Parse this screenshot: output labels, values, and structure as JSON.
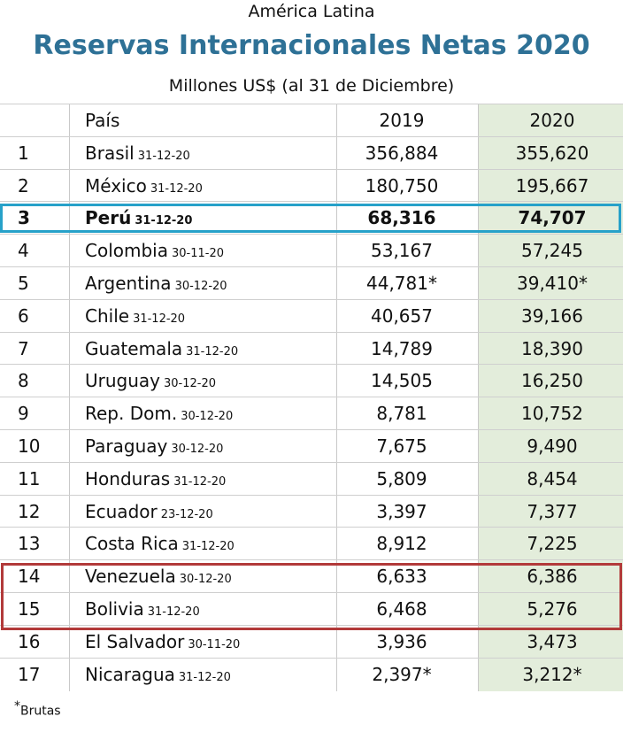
{
  "header": {
    "kicker": "América Latina",
    "title": "Reservas Internacionales Netas 2020",
    "subtitle": "Millones US$ (al 31 de Diciembre)"
  },
  "chart_data": {
    "type": "table",
    "title": "Reservas Internacionales Netas 2020",
    "subtitle": "Millones US$ (al 31 de Diciembre)",
    "columns": [
      "",
      "País",
      "2019",
      "2020"
    ],
    "rows": [
      {
        "rank": "1",
        "country": "Brasil",
        "date": "31-12-20",
        "v2019": "356,884",
        "v2020": "355,620"
      },
      {
        "rank": "2",
        "country": "México",
        "date": "31-12-20",
        "v2019": "180,750",
        "v2020": "195,667"
      },
      {
        "rank": "3",
        "country": "Perú",
        "date": "31-12-20",
        "v2019": "68,316",
        "v2020": "74,707"
      },
      {
        "rank": "4",
        "country": "Colombia",
        "date": "30-11-20",
        "v2019": "53,167",
        "v2020": "57,245"
      },
      {
        "rank": "5",
        "country": "Argentina",
        "date": "30-12-20",
        "v2019": "44,781*",
        "v2020": "39,410*"
      },
      {
        "rank": "6",
        "country": "Chile",
        "date": "31-12-20",
        "v2019": "40,657",
        "v2020": "39,166"
      },
      {
        "rank": "7",
        "country": "Guatemala",
        "date": "31-12-20",
        "v2019": "14,789",
        "v2020": "18,390"
      },
      {
        "rank": "8",
        "country": "Uruguay",
        "date": "30-12-20",
        "v2019": "14,505",
        "v2020": "16,250"
      },
      {
        "rank": "9",
        "country": "Rep. Dom.",
        "date": "30-12-20",
        "v2019": "8,781",
        "v2020": "10,752"
      },
      {
        "rank": "10",
        "country": "Paraguay",
        "date": "30-12-20",
        "v2019": "7,675",
        "v2020": "9,490"
      },
      {
        "rank": "11",
        "country": "Honduras",
        "date": "31-12-20",
        "v2019": "5,809",
        "v2020": "8,454"
      },
      {
        "rank": "12",
        "country": "Ecuador",
        "date": "23-12-20",
        "v2019": "3,397",
        "v2020": "7,377"
      },
      {
        "rank": "13",
        "country": "Costa Rica",
        "date": "31-12-20",
        "v2019": "8,912",
        "v2020": "7,225"
      },
      {
        "rank": "14",
        "country": "Venezuela",
        "date": "30-12-20",
        "v2019": "6,633",
        "v2020": "6,386"
      },
      {
        "rank": "15",
        "country": "Bolivia",
        "date": "31-12-20",
        "v2019": "6,468",
        "v2020": "5,276"
      },
      {
        "rank": "16",
        "country": "El Salvador",
        "date": "30-11-20",
        "v2019": "3,936",
        "v2020": "3,473"
      },
      {
        "rank": "17",
        "country": "Nicaragua",
        "date": "31-12-20",
        "v2019": "2,397*",
        "v2020": "3,212*"
      }
    ],
    "highlights": {
      "blue": [
        "3"
      ],
      "red": [
        "14",
        "15"
      ]
    },
    "colors": {
      "title": "#2e7196",
      "col2020": "#e3eddb",
      "blue_box": "#27a1c9",
      "red_box": "#b23a3a"
    }
  },
  "footnote": {
    "star": "*",
    "text": "Brutas"
  }
}
